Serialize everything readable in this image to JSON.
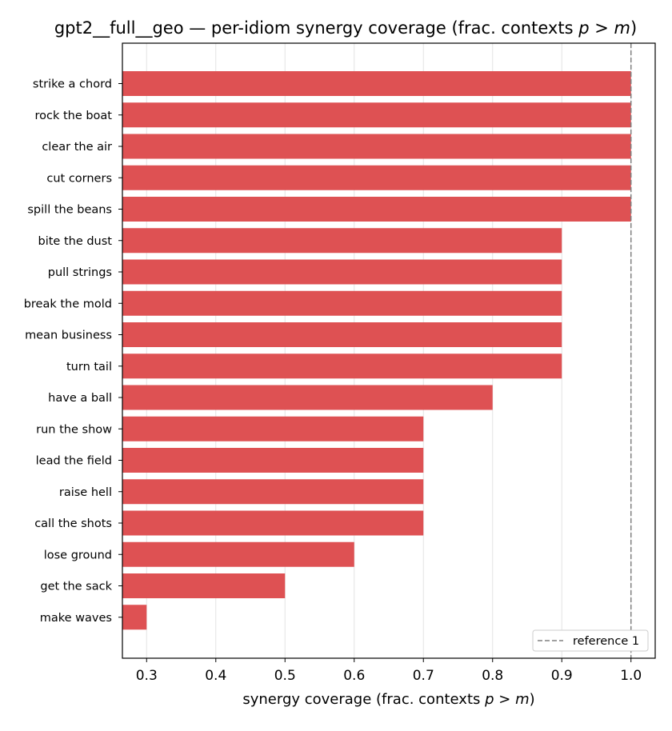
{
  "chart_data": {
    "type": "bar",
    "orientation": "horizontal",
    "title": "gpt2__full__geo — per-idiom synergy coverage  (frac. contexts p > m)",
    "xlabel": "synergy coverage  (frac. contexts p > m)",
    "ylabel": "",
    "categories": [
      "strike a chord",
      "rock the boat",
      "clear the air",
      "cut corners",
      "spill the beans",
      "bite the dust",
      "pull strings",
      "break the mold",
      "mean business",
      "turn tail",
      "have a ball",
      "run the show",
      "lead the field",
      "raise hell",
      "call the shots",
      "lose ground",
      "get the sack",
      "make waves"
    ],
    "values": [
      1.0,
      1.0,
      1.0,
      1.0,
      1.0,
      0.9,
      0.9,
      0.9,
      0.9,
      0.9,
      0.8,
      0.7,
      0.7,
      0.7,
      0.7,
      0.6,
      0.5,
      0.3
    ],
    "xlim": [
      0.265,
      1.035
    ],
    "xticks": [
      "0.3",
      "0.4",
      "0.5",
      "0.6",
      "0.7",
      "0.8",
      "0.9",
      "1.0"
    ],
    "grid": "x",
    "bar_color": "#de5153",
    "reference_line": {
      "value": 1.0,
      "label": "reference 1",
      "color": "#808080",
      "style": "dashed"
    },
    "legend_position": "lower-right"
  }
}
